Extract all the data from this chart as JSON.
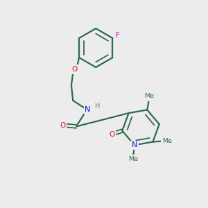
{
  "background_color": "#ececec",
  "bond_color": "#2d6b4f",
  "nitrogen_color": "#1010ee",
  "oxygen_color": "#ee1010",
  "fluorine_color": "#cc00cc",
  "h_color": "#607878",
  "figsize": [
    3.0,
    3.0
  ],
  "dpi": 100,
  "xlim": [
    0,
    10
  ],
  "ylim": [
    0,
    10
  ]
}
